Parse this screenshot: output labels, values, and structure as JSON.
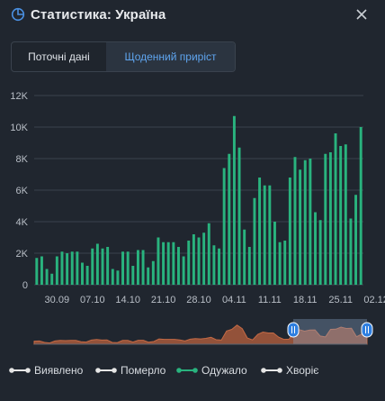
{
  "header": {
    "title": "Статистика: Україна",
    "icon": "pie-chart-icon",
    "close_icon": "close-icon"
  },
  "tabs": [
    {
      "label": "Поточні дані",
      "active": false
    },
    {
      "label": "Щоденний приріст",
      "active": true
    }
  ],
  "colors": {
    "background": "#20262f",
    "bars": "#29b37e",
    "accent": "#4a90e2",
    "navigator_area": "#a85a3c",
    "grid": "#3a424d"
  },
  "legend": [
    {
      "label": "Виявлено",
      "color": "#e6e6e6",
      "active": false
    },
    {
      "label": "Померло",
      "color": "#e6e6e6",
      "active": false
    },
    {
      "label": "Одужало",
      "color": "#29b37e",
      "active": true
    },
    {
      "label": "Хворіє",
      "color": "#e6e6e6",
      "active": false
    }
  ],
  "chart_data": {
    "type": "bar",
    "series": [
      {
        "name": "Одужало",
        "values": [
          1700,
          1800,
          1000,
          700,
          1800,
          2100,
          2000,
          2100,
          2100,
          1400,
          1200,
          2300,
          2600,
          2300,
          2400,
          1000,
          900,
          2100,
          2100,
          1200,
          2200,
          2200,
          1100,
          1500,
          3000,
          2700,
          2700,
          2700,
          2400,
          1800,
          2800,
          3200,
          3000,
          3300,
          3900,
          2500,
          2300,
          7400,
          8300,
          10700,
          8700,
          3500,
          2400,
          5500,
          6800,
          6300,
          6300,
          4000,
          2700,
          2800,
          6800,
          8100,
          7300,
          7900,
          8000,
          4600,
          4100,
          8300,
          8400,
          9600,
          8800,
          8900,
          4200,
          5700,
          10000
        ]
      }
    ],
    "x_tick_labels": [
      "30.09",
      "07.10",
      "14.10",
      "21.10",
      "28.10",
      "04.11",
      "11.11",
      "18.11",
      "25.11",
      "02.12"
    ],
    "y_tick_labels": [
      "0",
      "2K",
      "4K",
      "6K",
      "8K",
      "10K",
      "12K"
    ],
    "ylim": [
      0,
      12000
    ],
    "grid": true,
    "navigator": true,
    "legend_position": "bottom"
  }
}
